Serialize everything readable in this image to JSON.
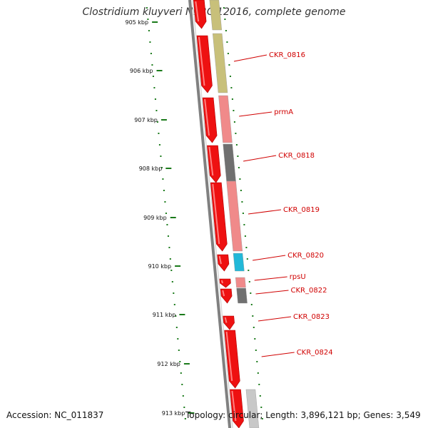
{
  "title": "Clostridium kluyveri NBRC 12016, complete genome",
  "accession": "Accession: NC_011837",
  "stats": "Topology: circular; Length: 3,896,121 bp; Genes: 3,549",
  "ticks": [
    "905 kbp",
    "906 kbp",
    "907 kbp",
    "908 kbp",
    "909 kbp",
    "910 kbp",
    "911 kbp",
    "912 kbp",
    "913 kbp"
  ],
  "genes": [
    {
      "label": "CKR_0816"
    },
    {
      "label": "prmA"
    },
    {
      "label": "CKR_0818"
    },
    {
      "label": "CKR_0819"
    },
    {
      "label": "CKR_0820"
    },
    {
      "label": "rpsU"
    },
    {
      "label": "CKR_0822"
    },
    {
      "label": "CKR_0823"
    },
    {
      "label": "CKR_0824"
    }
  ],
  "colors": {
    "cds": "#ee1111",
    "olive": "#c8c07a",
    "pink": "#f08a8a",
    "gray": "#707070",
    "cyan": "#22b8d8",
    "lightgray": "#c8c8c8",
    "backbone": "#808080",
    "dots": "#1a7a1a",
    "label": "#d00000"
  }
}
